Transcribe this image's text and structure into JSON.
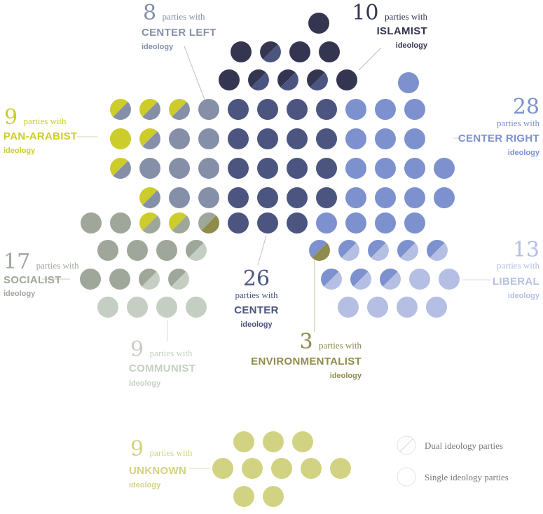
{
  "chart_data": {
    "type": "dot-cluster",
    "parties_with_label": "parties with",
    "ideology_label": "ideology",
    "groups": [
      {
        "key": "center_left",
        "count": 8,
        "name": "CENTER LEFT",
        "color": "#858FA8"
      },
      {
        "key": "islamist",
        "count": 10,
        "name": "ISLAMIST",
        "color": "#343651"
      },
      {
        "key": "center_right",
        "count": 28,
        "name": "CENTER RIGHT",
        "color": "#7D91CE"
      },
      {
        "key": "liberal",
        "count": 13,
        "name": "LIBERAL",
        "color": "#B5BFE4"
      },
      {
        "key": "pan_arabist",
        "count": 9,
        "name": "PAN-ARABIST",
        "color": "#CCCC2A"
      },
      {
        "key": "socialist",
        "count": 17,
        "name": "SOCIALIST",
        "color": "#9FA79B"
      },
      {
        "key": "center",
        "count": 26,
        "name": "CENTER",
        "color": "#4B5580"
      },
      {
        "key": "communist",
        "count": 9,
        "name": "COMMUNIST",
        "color": "#C5CEC3"
      },
      {
        "key": "environmentalist",
        "count": 3,
        "name": "ENVIRONMENTALIST",
        "color": "#8E8C4A"
      },
      {
        "key": "unknown",
        "count": 9,
        "name": "UNKNOWN",
        "color": "#D2D283"
      }
    ],
    "legend": [
      {
        "key": "dual",
        "label": "Dual ideology parties"
      },
      {
        "key": "single",
        "label": "Single ideology parties"
      }
    ]
  }
}
